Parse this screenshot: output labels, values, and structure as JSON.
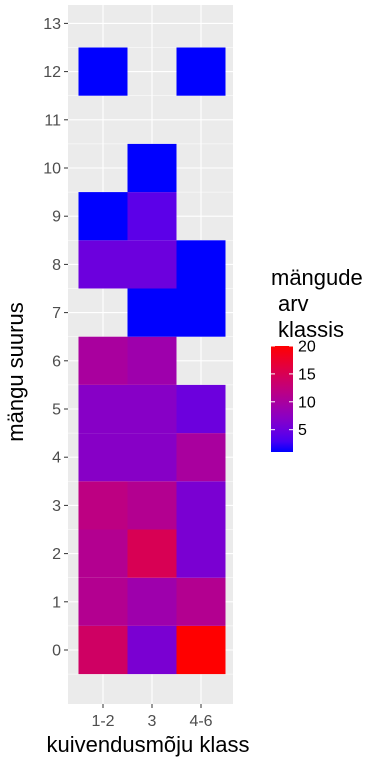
{
  "chart_data": {
    "type": "heatmap",
    "xlabel": "kuivendusmõju klass",
    "ylabel": "mängu suurus",
    "x_categories": [
      "1-2",
      "3",
      "4-6"
    ],
    "y_ticks": [
      0,
      1,
      2,
      3,
      4,
      5,
      6,
      7,
      8,
      9,
      10,
      11,
      12,
      13
    ],
    "ylim": [
      -0.5,
      13
    ],
    "background": "#ebebeb",
    "grid": true,
    "legend": {
      "title_lines": [
        "mängude",
        "arv",
        "klassis"
      ],
      "breaks": [
        5,
        10,
        15,
        20
      ],
      "range": [
        1,
        20
      ],
      "low_color": "#0000ff",
      "high_color": "#ff0000",
      "placement": "right"
    },
    "cells": [
      {
        "x": "1-2",
        "y": 0,
        "value": 14
      },
      {
        "x": "3",
        "y": 0,
        "value": 6
      },
      {
        "x": "4-6",
        "y": 0,
        "value": 20
      },
      {
        "x": "1-2",
        "y": 1,
        "value": 11
      },
      {
        "x": "3",
        "y": 1,
        "value": 9
      },
      {
        "x": "4-6",
        "y": 1,
        "value": 11
      },
      {
        "x": "1-2",
        "y": 2,
        "value": 11
      },
      {
        "x": "3",
        "y": 2,
        "value": 15
      },
      {
        "x": "4-6",
        "y": 2,
        "value": 6
      },
      {
        "x": "1-2",
        "y": 3,
        "value": 12
      },
      {
        "x": "3",
        "y": 3,
        "value": 11
      },
      {
        "x": "4-6",
        "y": 3,
        "value": 6
      },
      {
        "x": "1-2",
        "y": 4,
        "value": 7
      },
      {
        "x": "3",
        "y": 4,
        "value": 7
      },
      {
        "x": "4-6",
        "y": 4,
        "value": 10
      },
      {
        "x": "1-2",
        "y": 5,
        "value": 7
      },
      {
        "x": "3",
        "y": 5,
        "value": 7
      },
      {
        "x": "4-6",
        "y": 5,
        "value": 5
      },
      {
        "x": "1-2",
        "y": 6,
        "value": 10
      },
      {
        "x": "3",
        "y": 6,
        "value": 9
      },
      {
        "x": "3",
        "y": 7,
        "value": 1
      },
      {
        "x": "4-6",
        "y": 7,
        "value": 1
      },
      {
        "x": "1-2",
        "y": 8,
        "value": 5
      },
      {
        "x": "3",
        "y": 8,
        "value": 5
      },
      {
        "x": "4-6",
        "y": 8,
        "value": 1
      },
      {
        "x": "1-2",
        "y": 9,
        "value": 1
      },
      {
        "x": "3",
        "y": 9,
        "value": 4
      },
      {
        "x": "3",
        "y": 10,
        "value": 1
      },
      {
        "x": "1-2",
        "y": 12,
        "value": 1
      },
      {
        "x": "4-6",
        "y": 12,
        "value": 1
      }
    ]
  }
}
